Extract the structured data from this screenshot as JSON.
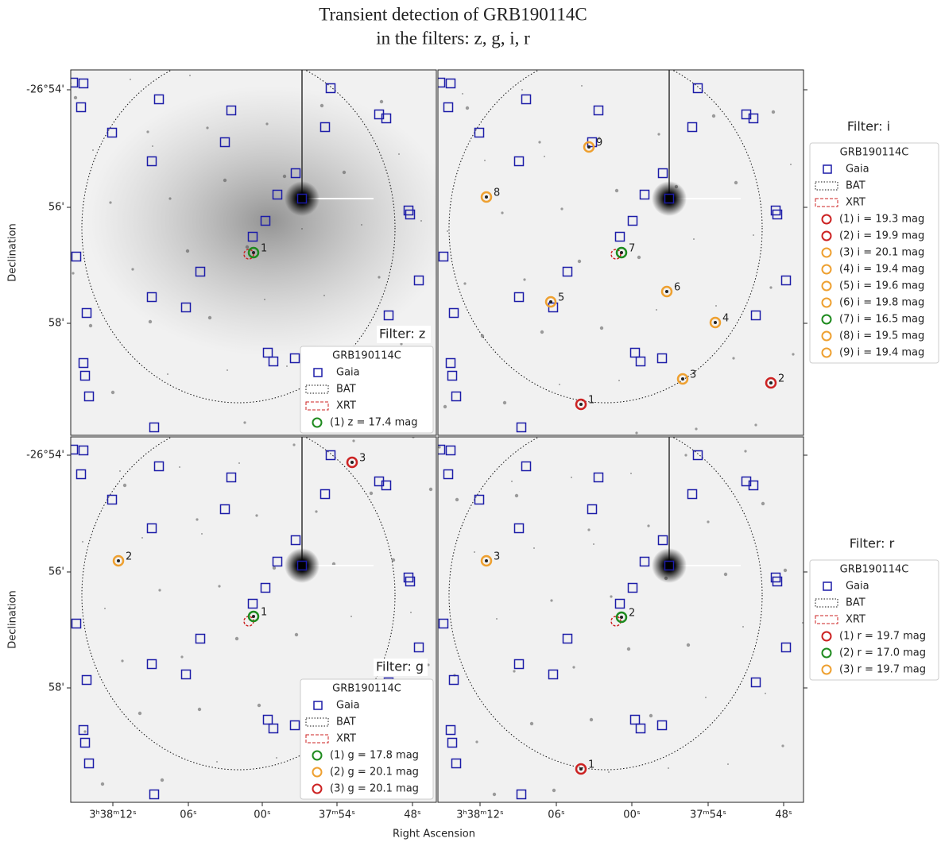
{
  "title": [
    "Transient detection of GRB190114C",
    "in the filters: z, g, i, r"
  ],
  "x_label": "Right Ascension",
  "y_label": "Declination",
  "x_ticks": [
    "3ʰ38ᵐ12ˢ",
    "06ˢ",
    "00ˢ",
    "37ᵐ54ˢ",
    "48ˢ"
  ],
  "y_ticks": [
    "-26°54'",
    "56'",
    "58'"
  ],
  "panels": [
    {
      "filter_label": "Filter: z",
      "legend": {
        "title": "GRB190114C",
        "items": [
          "Gaia",
          "BAT",
          "XRT"
        ],
        "detections": [
          {
            "text": "(1)  z = 17.4 mag",
            "color": "#1e8a1e"
          }
        ]
      },
      "markers": [
        {
          "label": "1",
          "color": "#1e8a1e"
        }
      ]
    },
    {
      "filter_label": "Filter: i",
      "legend": {
        "title": "GRB190114C",
        "items": [
          "Gaia",
          "BAT",
          "XRT"
        ],
        "detections": [
          {
            "text": "(1)  i = 19.3 mag",
            "color": "#cc2222"
          },
          {
            "text": "(2)  i = 19.9 mag",
            "color": "#cc2222"
          },
          {
            "text": "(3)  i = 20.1 mag",
            "color": "#eea030"
          },
          {
            "text": "(4)  i = 19.4 mag",
            "color": "#eea030"
          },
          {
            "text": "(5)  i = 19.6 mag",
            "color": "#eea030"
          },
          {
            "text": "(6)  i = 19.8 mag",
            "color": "#eea030"
          },
          {
            "text": "(7)  i = 16.5 mag",
            "color": "#1e8a1e"
          },
          {
            "text": "(8)  i = 19.5 mag",
            "color": "#eea030"
          },
          {
            "text": "(9)  i = 19.4 mag",
            "color": "#eea030"
          }
        ]
      },
      "markers": [
        {
          "label": "1",
          "color": "#cc2222"
        },
        {
          "label": "2",
          "color": "#cc2222"
        },
        {
          "label": "3",
          "color": "#eea030"
        },
        {
          "label": "4",
          "color": "#eea030"
        },
        {
          "label": "5",
          "color": "#eea030"
        },
        {
          "label": "6",
          "color": "#eea030"
        },
        {
          "label": "7",
          "color": "#1e8a1e"
        },
        {
          "label": "8",
          "color": "#eea030"
        },
        {
          "label": "9",
          "color": "#eea030"
        }
      ]
    },
    {
      "filter_label": "Filter: g",
      "legend": {
        "title": "GRB190114C",
        "items": [
          "Gaia",
          "BAT",
          "XRT"
        ],
        "detections": [
          {
            "text": "(1)  g = 17.8 mag",
            "color": "#1e8a1e"
          },
          {
            "text": "(2)  g = 20.1 mag",
            "color": "#eea030"
          },
          {
            "text": "(3)  g = 20.1 mag",
            "color": "#cc2222"
          }
        ]
      },
      "markers": [
        {
          "label": "1",
          "color": "#1e8a1e"
        },
        {
          "label": "2",
          "color": "#eea030"
        },
        {
          "label": "3",
          "color": "#cc2222"
        }
      ]
    },
    {
      "filter_label": "Filter: r",
      "legend": {
        "title": "GRB190114C",
        "items": [
          "Gaia",
          "BAT",
          "XRT"
        ],
        "detections": [
          {
            "text": "(1)  r = 19.7 mag",
            "color": "#cc2222"
          },
          {
            "text": "(2)  r = 17.0 mag",
            "color": "#1e8a1e"
          },
          {
            "text": "(3)  r = 19.7 mag",
            "color": "#eea030"
          }
        ]
      },
      "markers": [
        {
          "label": "1",
          "color": "#cc2222"
        },
        {
          "label": "2",
          "color": "#1e8a1e"
        },
        {
          "label": "3",
          "color": "#eea030"
        }
      ]
    }
  ]
}
